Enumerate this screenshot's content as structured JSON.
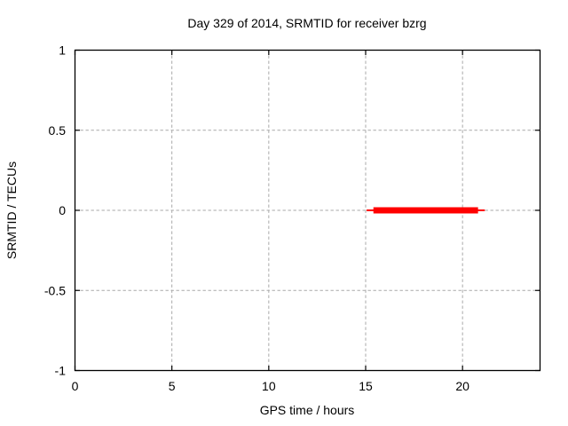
{
  "chart_data": {
    "type": "line",
    "title": "Day 329 of 2014, SRMTID for receiver bzrg",
    "xlabel": "GPS time / hours",
    "ylabel": "SRMTID / TECUs",
    "xlim": [
      0,
      24
    ],
    "ylim": [
      -1,
      1
    ],
    "grid": true,
    "legend": "none",
    "xticks": [
      {
        "value": 0,
        "label": "0"
      },
      {
        "value": 5,
        "label": "5"
      },
      {
        "value": 10,
        "label": "10"
      },
      {
        "value": 15,
        "label": "15"
      },
      {
        "value": 20,
        "label": "20"
      }
    ],
    "yticks": [
      {
        "value": -1,
        "label": "-1"
      },
      {
        "value": -0.5,
        "label": "-0.5"
      },
      {
        "value": 0,
        "label": "0"
      },
      {
        "value": 0.5,
        "label": "0.5"
      },
      {
        "value": 1,
        "label": "1"
      }
    ],
    "series": [
      {
        "name": "SRMTID",
        "color": "#ff0000",
        "reading": "SRMTID is approximately 0 TECUs from about 15.1 to 21.2 GPS hours; dense (thick) coverage from about 15.4 to 20.8 hours",
        "segments": [
          {
            "y": 0,
            "x_start": 15.05,
            "x_end": 21.15,
            "linewidth": 2
          },
          {
            "y": 0,
            "x_start": 15.4,
            "x_end": 20.8,
            "linewidth": 7
          }
        ]
      }
    ],
    "colors": {
      "background": "#ffffff",
      "axis": "#000000",
      "grid": "#a9a9a9",
      "text": "#000000",
      "series": "#ff0000"
    }
  }
}
